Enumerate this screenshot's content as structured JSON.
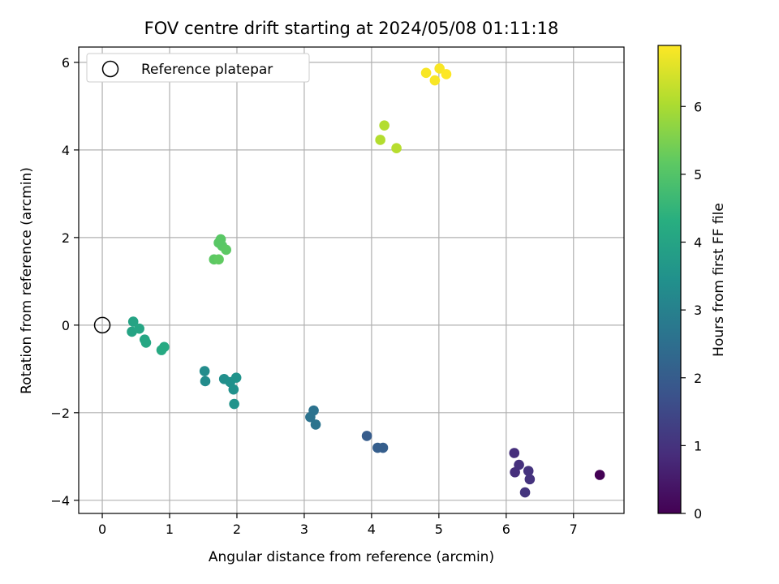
{
  "chart_data": {
    "type": "scatter",
    "title": "FOV centre drift starting at 2024/05/08 01:11:18",
    "xlabel": "Angular distance from reference (arcmin)",
    "ylabel": "Rotation from reference (arcmin)",
    "xlim": [
      -0.35,
      7.75
    ],
    "ylim": [
      -4.3,
      6.35
    ],
    "xticks": [
      0,
      1,
      2,
      3,
      4,
      5,
      6,
      7
    ],
    "yticks": [
      -4,
      -2,
      0,
      2,
      4,
      6
    ],
    "grid": true,
    "legend": {
      "position": "top-left",
      "entries": [
        "Reference platepar"
      ]
    },
    "reference": {
      "x": 0,
      "y": 0
    },
    "colorbar": {
      "label": "Hours from first FF file",
      "range": [
        0,
        6.9
      ],
      "ticks": [
        0,
        1,
        2,
        3,
        4,
        5,
        6
      ],
      "colormap": "viridis"
    },
    "points": [
      {
        "x": 7.39,
        "y": -3.42,
        "hours": 0.0
      },
      {
        "x": 6.12,
        "y": -2.92,
        "hours": 0.9
      },
      {
        "x": 6.13,
        "y": -3.36,
        "hours": 0.9
      },
      {
        "x": 6.19,
        "y": -3.19,
        "hours": 0.95
      },
      {
        "x": 6.33,
        "y": -3.33,
        "hours": 1.0
      },
      {
        "x": 6.35,
        "y": -3.52,
        "hours": 1.0
      },
      {
        "x": 6.28,
        "y": -3.82,
        "hours": 1.05
      },
      {
        "x": 3.93,
        "y": -2.53,
        "hours": 2.0
      },
      {
        "x": 4.09,
        "y": -2.8,
        "hours": 2.05
      },
      {
        "x": 4.17,
        "y": -2.8,
        "hours": 2.05
      },
      {
        "x": 3.14,
        "y": -1.95,
        "hours": 2.6
      },
      {
        "x": 3.09,
        "y": -2.1,
        "hours": 2.6
      },
      {
        "x": 3.17,
        "y": -2.27,
        "hours": 2.65
      },
      {
        "x": 1.52,
        "y": -1.05,
        "hours": 3.3
      },
      {
        "x": 1.53,
        "y": -1.28,
        "hours": 3.3
      },
      {
        "x": 1.81,
        "y": -1.23,
        "hours": 3.4
      },
      {
        "x": 1.9,
        "y": -1.3,
        "hours": 3.45
      },
      {
        "x": 1.95,
        "y": -1.47,
        "hours": 3.45
      },
      {
        "x": 1.99,
        "y": -1.2,
        "hours": 3.5
      },
      {
        "x": 1.96,
        "y": -1.8,
        "hours": 3.5
      },
      {
        "x": 0.46,
        "y": 0.08,
        "hours": 4.0
      },
      {
        "x": 0.44,
        "y": -0.15,
        "hours": 4.0
      },
      {
        "x": 0.55,
        "y": -0.08,
        "hours": 4.05
      },
      {
        "x": 0.63,
        "y": -0.33,
        "hours": 4.05
      },
      {
        "x": 0.65,
        "y": -0.4,
        "hours": 4.1
      },
      {
        "x": 0.88,
        "y": -0.57,
        "hours": 4.15
      },
      {
        "x": 0.92,
        "y": -0.5,
        "hours": 4.15
      },
      {
        "x": 1.76,
        "y": 1.96,
        "hours": 5.1
      },
      {
        "x": 1.73,
        "y": 1.88,
        "hours": 5.1
      },
      {
        "x": 1.78,
        "y": 1.81,
        "hours": 5.1
      },
      {
        "x": 1.84,
        "y": 1.72,
        "hours": 5.15
      },
      {
        "x": 1.66,
        "y": 1.5,
        "hours": 5.15
      },
      {
        "x": 1.73,
        "y": 1.5,
        "hours": 5.2
      },
      {
        "x": 4.19,
        "y": 4.56,
        "hours": 6.1
      },
      {
        "x": 4.13,
        "y": 4.23,
        "hours": 6.1
      },
      {
        "x": 4.37,
        "y": 4.04,
        "hours": 6.15
      },
      {
        "x": 4.81,
        "y": 5.76,
        "hours": 6.85
      },
      {
        "x": 4.94,
        "y": 5.59,
        "hours": 6.85
      },
      {
        "x": 5.01,
        "y": 5.86,
        "hours": 6.85
      },
      {
        "x": 5.11,
        "y": 5.73,
        "hours": 6.9
      }
    ]
  }
}
